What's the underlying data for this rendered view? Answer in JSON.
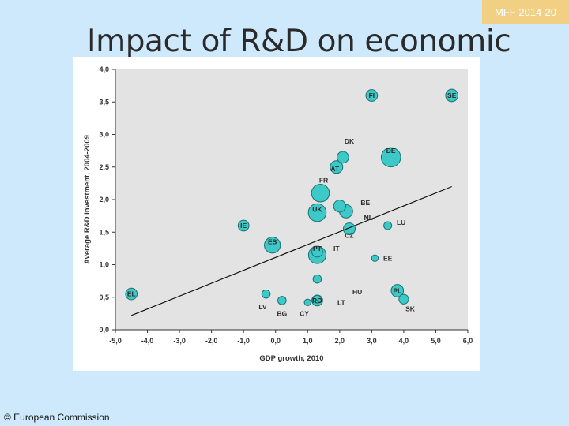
{
  "header": {
    "tag": "MFF 2014-20",
    "title": "Impact of R&D on economic"
  },
  "footer": {
    "copyright": "© European Commission"
  },
  "colors": {
    "page_bg": "#cde9fb",
    "tag_bg": "#f2d083",
    "plot_bg": "#e3e3e3",
    "bubble_fill": "#3ec9c9",
    "bubble_stroke": "#1f6f6f"
  },
  "chart_data": {
    "type": "scatter",
    "title": "",
    "xlabel": "GDP growth, 2010",
    "ylabel": "Average R&D investment, 2004-2009",
    "xlim": [
      -5.0,
      6.0
    ],
    "ylim": [
      0.0,
      4.0
    ],
    "x_ticks": [
      "-5,0",
      "-4,0",
      "-3,0",
      "-2,0",
      "-1,0",
      "0,0",
      "1,0",
      "2,0",
      "3,0",
      "4,0",
      "5,0",
      "6,0"
    ],
    "y_ticks": [
      "0,0",
      "0,5",
      "1,0",
      "1,5",
      "2,0",
      "2,5",
      "3,0",
      "3,5",
      "4,0"
    ],
    "grid": false,
    "trendline": {
      "x": [
        -4.5,
        5.5
      ],
      "y": [
        0.22,
        2.2
      ]
    },
    "points": [
      {
        "label": "FI",
        "x": 3.0,
        "y": 3.6,
        "size": 2.0,
        "label_dx": 0,
        "label_dy": 0
      },
      {
        "label": "SE",
        "x": 5.5,
        "y": 3.6,
        "size": 2.3,
        "label_dx": 0,
        "label_dy": 0
      },
      {
        "label": "DK",
        "x": 2.1,
        "y": 2.65,
        "size": 2.0,
        "label_dx": 0.2,
        "label_dy": 0.25
      },
      {
        "label": "DE",
        "x": 3.6,
        "y": 2.65,
        "size": 6.3,
        "label_dx": 0,
        "label_dy": 0.1
      },
      {
        "label": "AT",
        "x": 1.9,
        "y": 2.5,
        "size": 2.4,
        "label_dx": -0.05,
        "label_dy": -0.03
      },
      {
        "label": "FR",
        "x": 1.4,
        "y": 2.1,
        "size": 5.2,
        "label_dx": 0.1,
        "label_dy": 0.2
      },
      {
        "label": "BE",
        "x": 2.0,
        "y": 1.9,
        "size": 2.2,
        "label_dx": 0.8,
        "label_dy": 0.05
      },
      {
        "label": "NL",
        "x": 2.2,
        "y": 1.82,
        "size": 2.7,
        "label_dx": 0.7,
        "label_dy": -0.1
      },
      {
        "label": "UK",
        "x": 1.3,
        "y": 1.8,
        "size": 5.2,
        "label_dx": 0,
        "label_dy": 0.05
      },
      {
        "label": "LU",
        "x": 3.5,
        "y": 1.6,
        "size": 0.8,
        "label_dx": 0.42,
        "label_dy": 0.05
      },
      {
        "label": "CZ",
        "x": 2.3,
        "y": 1.55,
        "size": 2.1,
        "label_dx": 0,
        "label_dy": -0.1
      },
      {
        "label": "IE",
        "x": -1.0,
        "y": 1.6,
        "size": 1.7,
        "label_dx": 0,
        "label_dy": 0
      },
      {
        "label": "ES",
        "x": -0.1,
        "y": 1.3,
        "size": 4.1,
        "label_dx": 0,
        "label_dy": 0.05
      },
      {
        "label": "PT",
        "x": 1.3,
        "y": 1.2,
        "size": 1.7,
        "label_dx": 0,
        "label_dy": 0.05
      },
      {
        "label": "IT",
        "x": 1.3,
        "y": 1.15,
        "size": 5.0,
        "label_dx": 0.6,
        "label_dy": 0.1
      },
      {
        "label": "EE",
        "x": 3.1,
        "y": 1.1,
        "size": 0.5,
        "label_dx": 0.4,
        "label_dy": 0
      },
      {
        "label": "EL",
        "x": -4.5,
        "y": 0.55,
        "size": 2.0,
        "label_dx": 0,
        "label_dy": 0
      },
      {
        "label": "HU",
        "x": 1.3,
        "y": 0.78,
        "size": 0.9,
        "label_dx": 1.25,
        "label_dy": -0.2
      },
      {
        "label": "LV",
        "x": -0.3,
        "y": 0.55,
        "size": 0.9,
        "label_dx": -0.1,
        "label_dy": -0.2
      },
      {
        "label": "LT",
        "x": 1.3,
        "y": 0.47,
        "size": 0.8,
        "label_dx": 0.75,
        "label_dy": -0.05
      },
      {
        "label": "BG",
        "x": 0.2,
        "y": 0.45,
        "size": 0.9,
        "label_dx": 0,
        "label_dy": -0.2
      },
      {
        "label": "CY",
        "x": 1.0,
        "y": 0.42,
        "size": 0.5,
        "label_dx": -0.1,
        "label_dy": -0.17
      },
      {
        "label": "RO",
        "x": 1.3,
        "y": 0.45,
        "size": 1.7,
        "label_dx": 0,
        "label_dy": 0
      },
      {
        "label": "PL",
        "x": 3.8,
        "y": 0.6,
        "size": 2.3,
        "label_dx": 0,
        "label_dy": 0
      },
      {
        "label": "SK",
        "x": 4.0,
        "y": 0.47,
        "size": 1.3,
        "label_dx": 0.2,
        "label_dy": -0.15
      }
    ]
  }
}
